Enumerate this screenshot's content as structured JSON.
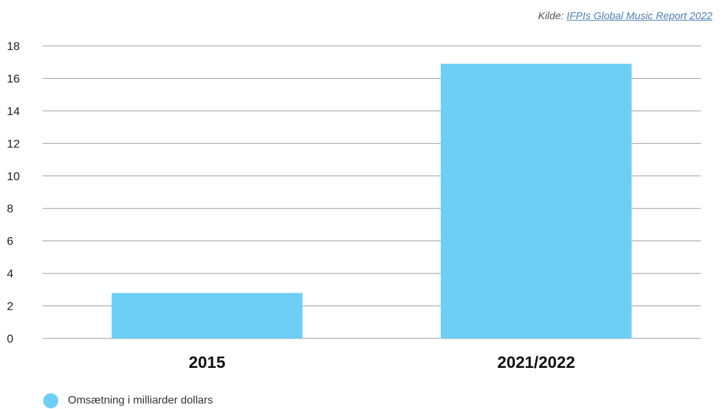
{
  "source": {
    "prefix": "Kilde: ",
    "link_text": "IFPIs Global Music Report 2022"
  },
  "chart_data": {
    "type": "bar",
    "categories": [
      "2015",
      "2021/2022"
    ],
    "series": [
      {
        "name": "Omsætning i milliarder dollars",
        "values": [
          2.8,
          16.9
        ],
        "color": "#6dcff6"
      }
    ],
    "ylim": [
      0,
      18
    ],
    "yticks": [
      0,
      2,
      4,
      6,
      8,
      10,
      12,
      14,
      16,
      18
    ],
    "grid": true,
    "legend_position": "bottom-left",
    "gridline_color": "#999999"
  }
}
